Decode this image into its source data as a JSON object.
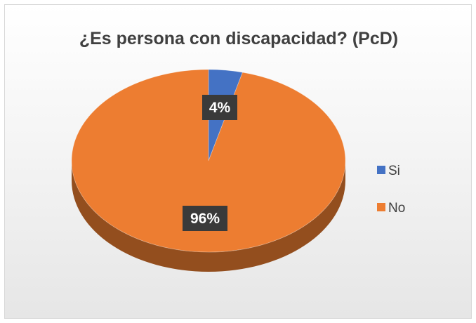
{
  "chart_data": {
    "type": "pie",
    "style": "3d",
    "title": "¿Es persona con discapacidad? (PcD)",
    "categories": [
      "Si",
      "No"
    ],
    "values": [
      4,
      96
    ],
    "data_labels": [
      "4%",
      "96%"
    ],
    "colors": [
      "#4472c4",
      "#ed7d31"
    ],
    "legend": "right"
  }
}
